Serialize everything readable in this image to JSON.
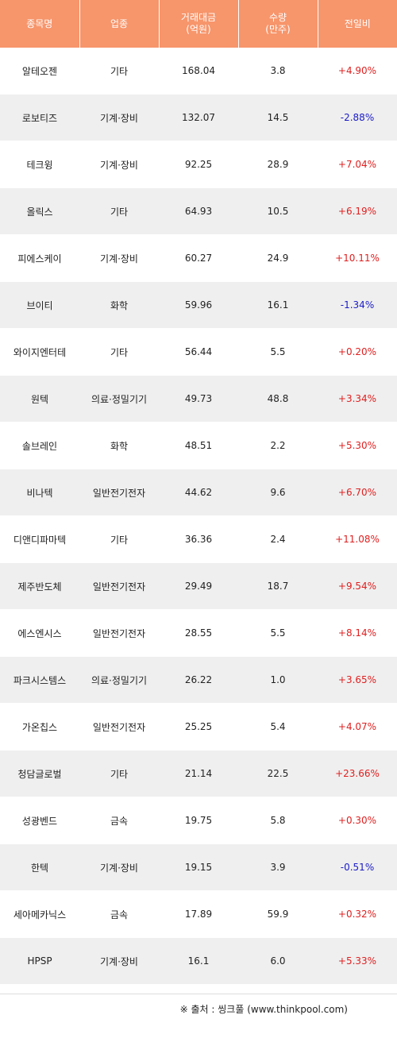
{
  "columns": [
    "종목명",
    "업종",
    "거래대금\n(억원)",
    "수량\n(만주)",
    "전일비"
  ],
  "rows": [
    {
      "name": "알테오젠",
      "sector": "기타",
      "amount": "168.04",
      "qty": "3.8",
      "change": "+4.90%",
      "dir": "up"
    },
    {
      "name": "로보티즈",
      "sector": "기계·장비",
      "amount": "132.07",
      "qty": "14.5",
      "change": "-2.88%",
      "dir": "down"
    },
    {
      "name": "테크윙",
      "sector": "기계·장비",
      "amount": "92.25",
      "qty": "28.9",
      "change": "+7.04%",
      "dir": "up"
    },
    {
      "name": "올릭스",
      "sector": "기타",
      "amount": "64.93",
      "qty": "10.5",
      "change": "+6.19%",
      "dir": "up"
    },
    {
      "name": "피에스케이",
      "sector": "기계·장비",
      "amount": "60.27",
      "qty": "24.9",
      "change": "+10.11%",
      "dir": "up"
    },
    {
      "name": "브이티",
      "sector": "화학",
      "amount": "59.96",
      "qty": "16.1",
      "change": "-1.34%",
      "dir": "down"
    },
    {
      "name": "와이지엔터테",
      "sector": "기타",
      "amount": "56.44",
      "qty": "5.5",
      "change": "+0.20%",
      "dir": "up"
    },
    {
      "name": "원텍",
      "sector": "의료·정밀기기",
      "amount": "49.73",
      "qty": "48.8",
      "change": "+3.34%",
      "dir": "up"
    },
    {
      "name": "솔브레인",
      "sector": "화학",
      "amount": "48.51",
      "qty": "2.2",
      "change": "+5.30%",
      "dir": "up"
    },
    {
      "name": "비나텍",
      "sector": "일반전기전자",
      "amount": "44.62",
      "qty": "9.6",
      "change": "+6.70%",
      "dir": "up"
    },
    {
      "name": "디앤디파마텍",
      "sector": "기타",
      "amount": "36.36",
      "qty": "2.4",
      "change": "+11.08%",
      "dir": "up"
    },
    {
      "name": "제주반도체",
      "sector": "일반전기전자",
      "amount": "29.49",
      "qty": "18.7",
      "change": "+9.54%",
      "dir": "up"
    },
    {
      "name": "에스엔시스",
      "sector": "일반전기전자",
      "amount": "28.55",
      "qty": "5.5",
      "change": "+8.14%",
      "dir": "up"
    },
    {
      "name": "파크시스템스",
      "sector": "의료·정밀기기",
      "amount": "26.22",
      "qty": "1.0",
      "change": "+3.65%",
      "dir": "up"
    },
    {
      "name": "가온칩스",
      "sector": "일반전기전자",
      "amount": "25.25",
      "qty": "5.4",
      "change": "+4.07%",
      "dir": "up"
    },
    {
      "name": "청담글로벌",
      "sector": "기타",
      "amount": "21.14",
      "qty": "22.5",
      "change": "+23.66%",
      "dir": "up"
    },
    {
      "name": "성광벤드",
      "sector": "금속",
      "amount": "19.75",
      "qty": "5.8",
      "change": "+0.30%",
      "dir": "up"
    },
    {
      "name": "한텍",
      "sector": "기계·장비",
      "amount": "19.15",
      "qty": "3.9",
      "change": "-0.51%",
      "dir": "down"
    },
    {
      "name": "세아메카닉스",
      "sector": "금속",
      "amount": "17.89",
      "qty": "59.9",
      "change": "+0.32%",
      "dir": "up"
    },
    {
      "name": "HPSP",
      "sector": "기계·장비",
      "amount": "16.1",
      "qty": "6.0",
      "change": "+5.33%",
      "dir": "up"
    }
  ],
  "source": "※ 출처 : 씽크풀 (www.thinkpool.com)",
  "colors": {
    "header_bg": "#f7956b",
    "up": "#e02020",
    "down": "#1c1cc8",
    "stripe": "#efefef"
  }
}
